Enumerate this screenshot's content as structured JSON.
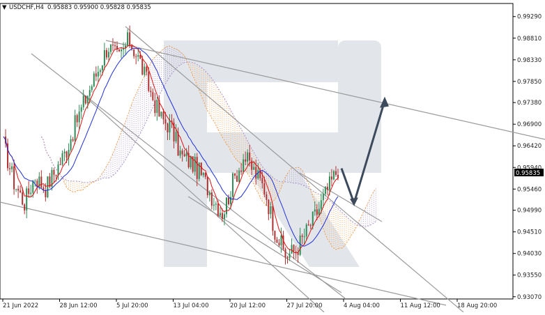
{
  "header": {
    "arrow": "▼",
    "symbol": "USDCHF,H4",
    "ohlc": "0.95883 0.95900 0.95828 0.95835"
  },
  "current_price_label": "0.95835",
  "chart_data": {
    "type": "candlestick",
    "symbol": "USDCHF",
    "timeframe": "H4",
    "ylim": [
      0.9302,
      0.9958
    ],
    "y_ticks": [
      "0.99290",
      "0.98810",
      "0.98330",
      "0.97850",
      "0.97380",
      "0.96900",
      "0.96420",
      "0.95940",
      "0.95460",
      "0.94990",
      "0.94510",
      "0.94030",
      "0.93550",
      "0.93070"
    ],
    "x_ticks": [
      "21 Jun 2022",
      "28 Jun 12:00",
      "5 Jul 20:00",
      "13 Jul 04:00",
      "20 Jul 12:00",
      "27 Jul 20:00",
      "4 Aug 04:00",
      "11 Aug 12:00",
      "18 Aug 20:00"
    ],
    "current_price": 0.95835,
    "price_path": [
      0.9645,
      0.9562,
      0.9515,
      0.9575,
      0.9548,
      0.9588,
      0.9632,
      0.9698,
      0.9755,
      0.9808,
      0.9865,
      0.9835,
      0.9878,
      0.9832,
      0.9765,
      0.9705,
      0.9685,
      0.9618,
      0.9605,
      0.9575,
      0.9528,
      0.9492,
      0.9565,
      0.9618,
      0.9585,
      0.9545,
      0.9452,
      0.9398,
      0.9412,
      0.9452,
      0.9495,
      0.9545,
      0.9592
    ],
    "forecast": [
      [
        0.9592,
        0.9515
      ],
      [
        0.9515,
        0.9742
      ]
    ],
    "colors": {
      "bull": "#2e8b57",
      "bear": "#b03030",
      "tenkan": "#e01010",
      "kijun": "#1f2fd8",
      "cloud_orange": "#f0a050",
      "cloud_purple": "#a890c8",
      "trend_lines": "#9a9a9a",
      "forecast_arrow": "#3c4a5c",
      "watermark": "#e2e6eb"
    }
  }
}
